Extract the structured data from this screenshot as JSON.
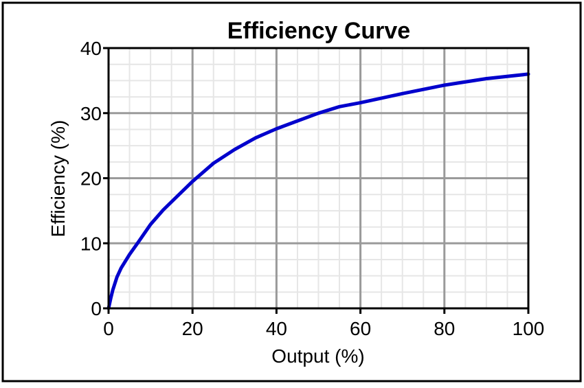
{
  "chart_data": {
    "type": "line",
    "title": "Efficiency Curve",
    "xlabel": "Output (%)",
    "ylabel": "Efficiency (%)",
    "xlim": [
      0,
      100
    ],
    "ylim": [
      0,
      40
    ],
    "x_ticks": [
      0,
      20,
      40,
      60,
      80,
      100
    ],
    "y_ticks": [
      0,
      10,
      20,
      30,
      40
    ],
    "x_tick_labels": [
      "0",
      "20",
      "40",
      "60",
      "80",
      "100"
    ],
    "y_tick_labels": [
      "0",
      "10",
      "20",
      "30",
      "40"
    ],
    "x_minor_step": 5,
    "y_minor_step": 2.5,
    "grid": true,
    "series": [
      {
        "color": "#0000cc",
        "x": [
          0,
          0.5,
          1,
          2,
          3,
          5,
          7,
          10,
          13,
          16,
          20,
          25,
          30,
          35,
          40,
          45,
          50,
          55,
          60,
          70,
          80,
          90,
          100
        ],
        "y": [
          0,
          1.5,
          2.8,
          4.8,
          6.2,
          8.3,
          10.1,
          12.9,
          15.1,
          17.0,
          19.5,
          22.3,
          24.4,
          26.2,
          27.6,
          28.8,
          30.0,
          31.0,
          31.6,
          33.0,
          34.3,
          35.3,
          36.0
        ]
      }
    ]
  }
}
